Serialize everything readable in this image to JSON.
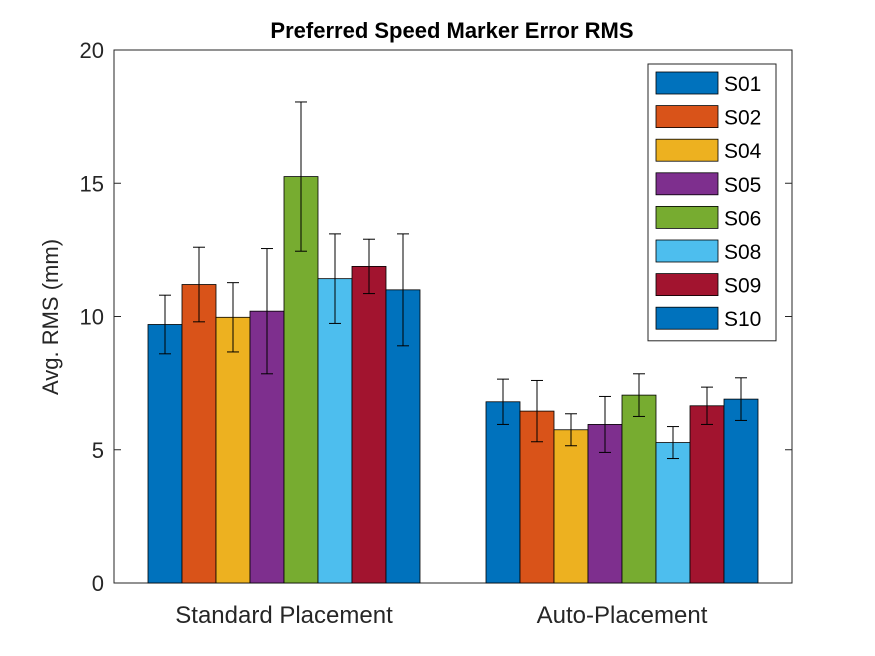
{
  "chart_data": {
    "type": "bar",
    "title": "Preferred Speed Marker Error RMS",
    "xlabel": "",
    "ylabel": "Avg. RMS (mm)",
    "ylim": [
      0,
      20
    ],
    "yticks": [
      "0",
      "5",
      "10",
      "15",
      "20"
    ],
    "categories": [
      "Standard Placement",
      "Auto-Placement"
    ],
    "legend_position": "top-right",
    "grid": false,
    "series": [
      {
        "name": "S01",
        "color": "#0072BD",
        "values": [
          9.7,
          6.8
        ],
        "errors": [
          1.1,
          0.85
        ]
      },
      {
        "name": "S02",
        "color": "#D95319",
        "values": [
          11.2,
          6.45
        ],
        "errors": [
          1.4,
          1.15
        ]
      },
      {
        "name": "S04",
        "color": "#EDB120",
        "values": [
          9.97,
          5.75
        ],
        "errors": [
          1.3,
          0.6
        ]
      },
      {
        "name": "S05",
        "color": "#7E2F8E",
        "values": [
          10.2,
          5.95
        ],
        "errors": [
          2.35,
          1.05
        ]
      },
      {
        "name": "S06",
        "color": "#77AC30",
        "values": [
          15.25,
          7.05
        ],
        "errors": [
          2.8,
          0.8
        ]
      },
      {
        "name": "S08",
        "color": "#4DBEEE",
        "values": [
          11.42,
          5.27
        ],
        "errors": [
          1.68,
          0.6
        ]
      },
      {
        "name": "S09",
        "color": "#A2142F",
        "values": [
          11.88,
          6.65
        ],
        "errors": [
          1.02,
          0.7
        ]
      },
      {
        "name": "S10",
        "color": "#0072BD",
        "values": [
          11.0,
          6.9
        ],
        "errors": [
          2.1,
          0.8
        ]
      }
    ]
  }
}
